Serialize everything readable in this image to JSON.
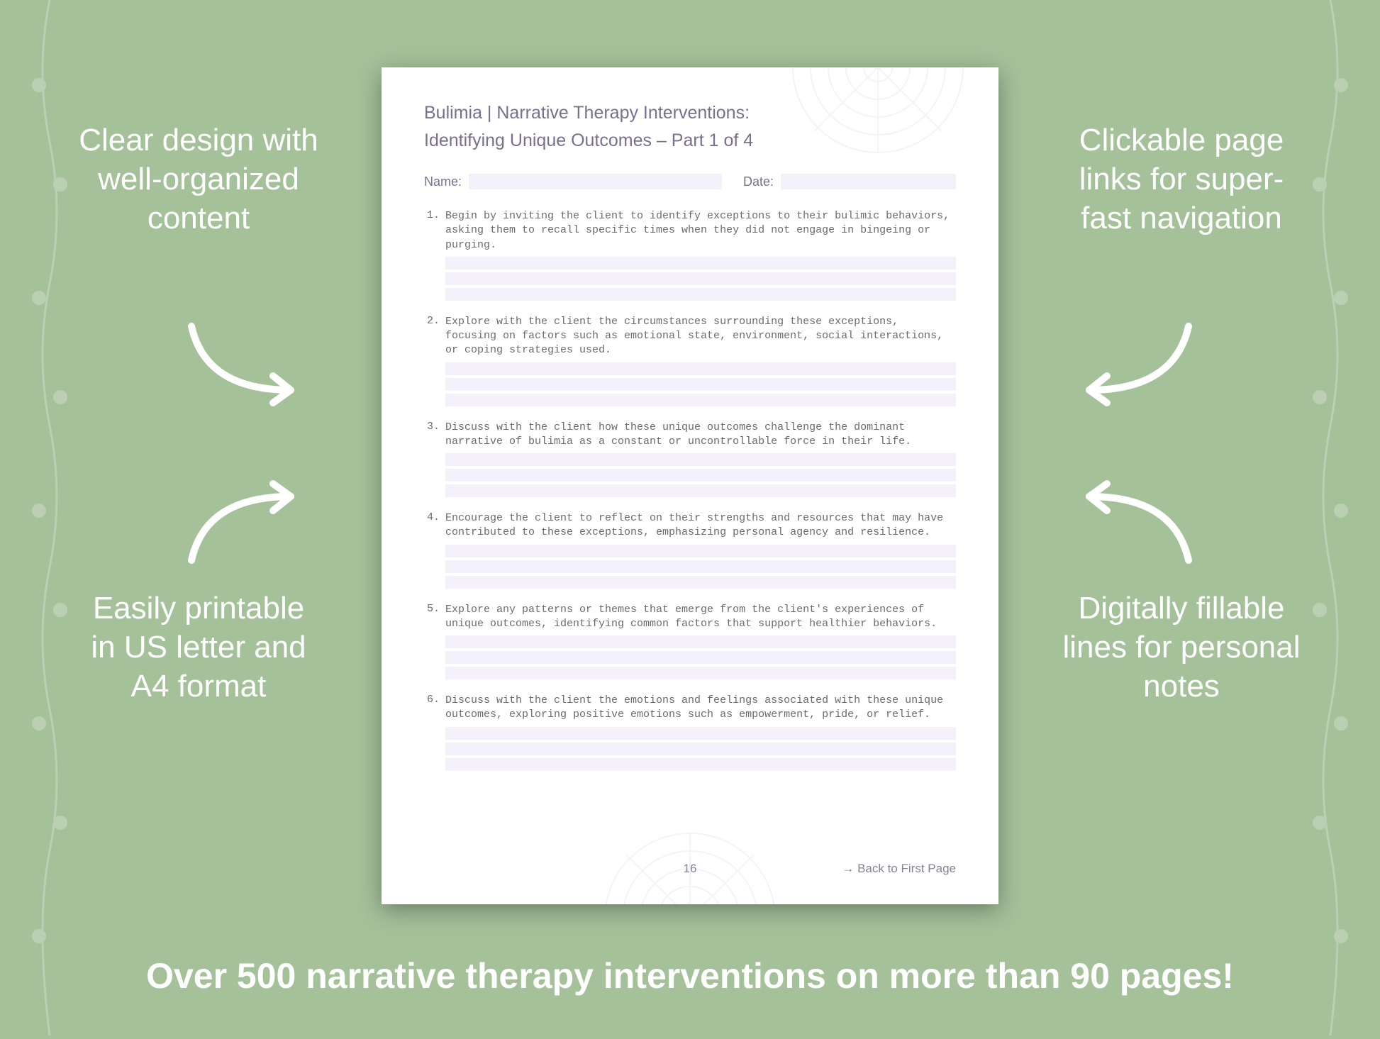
{
  "colors": {
    "background": "#a4c19a",
    "callout_text": "#ffffff",
    "banner_text": "#ffffff",
    "page_bg": "#ffffff",
    "doc_heading": "#7a6f8f",
    "item_text": "#6b6b6b",
    "fill_line": "#f4f1fa",
    "mandala": "#c8c2e3",
    "vine": "#ffffff",
    "arrow": "#ffffff",
    "shadow": "rgba(0,0,0,0.35)"
  },
  "typography": {
    "callout_fontsize": 44,
    "banner_fontsize": 50,
    "doc_title_fontsize": 25,
    "meta_label_fontsize": 18,
    "item_fontsize": 15,
    "item_font": "Courier New",
    "footer_fontsize": 17
  },
  "callouts": {
    "top_left": "Clear design with well-organized content",
    "bottom_left": "Easily printable in US letter and A4 format",
    "top_right": "Clickable page links for super-fast navigation",
    "bottom_right": "Digitally fillable lines for personal notes"
  },
  "banner": "Over 500 narrative therapy interventions on more than 90 pages!",
  "document": {
    "title": "Bulimia | Narrative Therapy Interventions:",
    "subtitle": "Identifying Unique Outcomes – Part 1 of 4",
    "meta": {
      "name_label": "Name:",
      "date_label": "Date:"
    },
    "items": [
      {
        "num": "1.",
        "text": "Begin by inviting the client to identify exceptions to their bulimic behaviors, asking them to recall specific times when they did not engage in bingeing or purging.",
        "lines": 3
      },
      {
        "num": "2.",
        "text": "Explore with the client the circumstances surrounding these exceptions, focusing on factors such as emotional state, environment, social interactions, or coping strategies used.",
        "lines": 3
      },
      {
        "num": "3.",
        "text": "Discuss with the client how these unique outcomes challenge the dominant narrative of bulimia as a constant or uncontrollable force in their life.",
        "lines": 3
      },
      {
        "num": "4.",
        "text": "Encourage the client to reflect on their strengths and resources that may have contributed to these exceptions, emphasizing personal agency and resilience.",
        "lines": 3
      },
      {
        "num": "5.",
        "text": "Explore any patterns or themes that emerge from the client's experiences of unique outcomes, identifying common factors that support healthier behaviors.",
        "lines": 3
      },
      {
        "num": "6.",
        "text": "Discuss with the client the emotions and feelings associated with these unique outcomes, exploring positive emotions such as empowerment, pride, or relief.",
        "lines": 3
      }
    ],
    "footer": {
      "page_number": "16",
      "back_link": "→ Back to First Page"
    }
  }
}
